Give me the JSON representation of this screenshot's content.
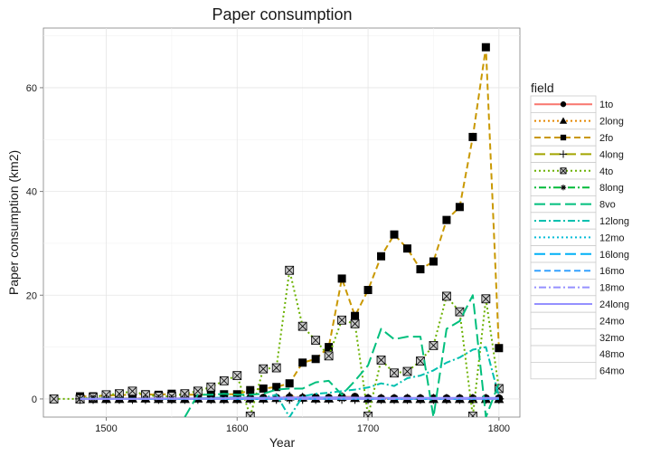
{
  "chart_data": {
    "type": "line",
    "title": "Paper consumption",
    "xlabel": "Year",
    "ylabel": "Paper consumption (km2)",
    "xlim": [
      1452,
      1816
    ],
    "ylim": [
      -3.5,
      71.5
    ],
    "x_ticks": [
      1500,
      1600,
      1700,
      1800
    ],
    "y_ticks": [
      0,
      20,
      40,
      60
    ],
    "grid": true,
    "legend": {
      "title": "field",
      "position": "right"
    },
    "series": [
      {
        "name": "1to",
        "color": "#F8766D",
        "line": "solid",
        "marker": "circle",
        "x": [
          1480,
          1490,
          1500,
          1510,
          1520,
          1530,
          1540,
          1550,
          1560,
          1570,
          1580,
          1590,
          1600,
          1610,
          1620,
          1630,
          1640,
          1650,
          1660,
          1670,
          1680,
          1690,
          1700,
          1710,
          1720,
          1730,
          1740,
          1750,
          1760,
          1770,
          1780,
          1790,
          1800
        ],
        "y": [
          0.1,
          0.1,
          0.1,
          0.1,
          0.1,
          0.1,
          0.1,
          0.1,
          0.1,
          0.1,
          0.1,
          0.1,
          0.1,
          0.2,
          0.2,
          0.2,
          0.3,
          0.2,
          0.3,
          0.2,
          0.4,
          0.4,
          0.1,
          0.1,
          0.1,
          0.1,
          0.1,
          0.1,
          0.1,
          0.1,
          0.1,
          0.1,
          0.1
        ]
      },
      {
        "name": "2long",
        "color": "#E58700",
        "line": "dotted",
        "marker": "triangle",
        "x": [
          1480,
          1490,
          1500,
          1510,
          1520,
          1530,
          1540,
          1550,
          1560,
          1570,
          1580,
          1590,
          1600,
          1610,
          1620,
          1630,
          1640,
          1650,
          1660,
          1670,
          1680,
          1690,
          1700,
          1710,
          1720,
          1730,
          1740,
          1750,
          1760,
          1770,
          1780,
          1790,
          1800
        ],
        "y": [
          0,
          0,
          0,
          0,
          0.1,
          0.1,
          0,
          0,
          0,
          0.1,
          0,
          0,
          0,
          0.1,
          0.1,
          0.2,
          0.5,
          0.3,
          0.1,
          0.1,
          0.4,
          0.2,
          0.1,
          0,
          0,
          0,
          0,
          0,
          0,
          0,
          0,
          0,
          0
        ]
      },
      {
        "name": "2fo",
        "color": "#C99800",
        "line": "dashed",
        "marker": "square",
        "x": [
          1480,
          1490,
          1500,
          1510,
          1520,
          1530,
          1540,
          1550,
          1560,
          1570,
          1580,
          1590,
          1600,
          1610,
          1620,
          1630,
          1640,
          1650,
          1660,
          1670,
          1680,
          1690,
          1700,
          1710,
          1720,
          1730,
          1740,
          1750,
          1760,
          1770,
          1780,
          1790,
          1800
        ],
        "y": [
          0.5,
          0.5,
          0.7,
          0.7,
          0.9,
          0.9,
          0.8,
          1.0,
          0.8,
          0.8,
          0.8,
          0.9,
          0.9,
          1.7,
          2.0,
          2.3,
          3.0,
          7.0,
          7.7,
          10.0,
          23.2,
          16.0,
          21.0,
          27.5,
          31.7,
          29.0,
          25.0,
          26.5,
          34.5,
          37.0,
          50.5,
          67.8,
          9.8
        ]
      },
      {
        "name": "4long",
        "color": "#A3A500",
        "line": "longdash",
        "marker": "plus",
        "x": [
          1480,
          1490,
          1500,
          1510,
          1520,
          1530,
          1540,
          1550,
          1560,
          1570,
          1580,
          1590,
          1600,
          1610,
          1620,
          1630,
          1640,
          1650,
          1660,
          1670,
          1680,
          1690,
          1700,
          1710,
          1720,
          1730,
          1740,
          1750,
          1760,
          1770,
          1780,
          1790,
          1800
        ],
        "y": [
          0,
          0,
          0,
          0,
          0,
          0,
          0,
          0,
          0,
          0,
          0,
          0,
          0,
          0,
          0,
          0,
          0,
          0,
          0,
          0,
          0,
          0,
          0,
          0,
          0,
          0,
          0,
          0,
          0,
          0,
          0,
          0,
          0
        ]
      },
      {
        "name": "4to",
        "color": "#6BB100",
        "line": "dotted",
        "marker": "boxx",
        "x": [
          1460,
          1480,
          1490,
          1500,
          1510,
          1520,
          1530,
          1540,
          1550,
          1560,
          1570,
          1580,
          1590,
          1600,
          1610,
          1620,
          1630,
          1640,
          1650,
          1660,
          1670,
          1680,
          1690,
          1700,
          1710,
          1720,
          1730,
          1740,
          1750,
          1760,
          1770,
          1780,
          1790,
          1800
        ],
        "y": [
          0,
          0,
          0.3,
          0.8,
          1.0,
          1.5,
          0.8,
          0.5,
          0.5,
          1.0,
          1.5,
          2.3,
          3.5,
          4.5,
          -3.3,
          5.8,
          6.0,
          24.8,
          14.0,
          11.3,
          8.3,
          15.2,
          14.5,
          -3.3,
          7.5,
          5.0,
          5.3,
          7.3,
          10.3,
          19.8,
          16.8,
          -3.3,
          19.3,
          2.0
        ]
      },
      {
        "name": "8long",
        "color": "#00BA38",
        "line": "dotdash",
        "marker": "asterisk",
        "x": [
          1480,
          1490,
          1500,
          1510,
          1520,
          1530,
          1540,
          1550,
          1560,
          1570,
          1580,
          1590,
          1600,
          1610,
          1620,
          1630,
          1640,
          1650,
          1660,
          1670,
          1680,
          1690,
          1700,
          1710,
          1720,
          1730,
          1740,
          1750,
          1760,
          1770,
          1780,
          1790,
          1800
        ],
        "y": [
          0,
          0,
          0,
          0,
          0,
          0,
          0,
          0,
          0,
          0,
          0,
          0,
          0,
          0,
          0,
          0,
          0,
          0,
          0,
          0,
          0,
          0,
          0,
          0,
          0,
          0,
          0,
          0,
          0,
          0,
          0,
          0,
          0
        ]
      },
      {
        "name": "8vo",
        "color": "#00BF7D",
        "line": "longdash",
        "marker": "none",
        "x": [
          1560,
          1570,
          1580,
          1590,
          1600,
          1610,
          1620,
          1630,
          1640,
          1650,
          1660,
          1670,
          1680,
          1690,
          1700,
          1710,
          1720,
          1730,
          1740,
          1750,
          1760,
          1770,
          1780,
          1790,
          1800
        ],
        "y": [
          -3.5,
          0.8,
          0.8,
          1.0,
          0.8,
          0.8,
          1.0,
          1.8,
          2.0,
          2.0,
          3.2,
          3.5,
          0.8,
          3.5,
          6.5,
          13.5,
          11.5,
          12.0,
          12.0,
          -3.5,
          13.5,
          15.0,
          20.0,
          -3.5,
          3.0
        ]
      },
      {
        "name": "12long",
        "color": "#00C0AF",
        "line": "dotdash",
        "marker": "none",
        "x": [
          1480,
          1500,
          1520,
          1540,
          1560,
          1580,
          1600,
          1620,
          1630,
          1640,
          1650,
          1660,
          1670,
          1680,
          1690,
          1700,
          1710,
          1720,
          1730,
          1740,
          1750,
          1760,
          1770,
          1780,
          1790,
          1800
        ],
        "y": [
          0,
          0,
          0,
          0,
          0,
          0.2,
          0.3,
          0.2,
          0.8,
          -3.5,
          0.5,
          1.0,
          1.2,
          1.5,
          1.8,
          2.2,
          3.0,
          2.5,
          4.0,
          4.5,
          5.5,
          7.0,
          8.0,
          9.5,
          10.0,
          0.5
        ]
      },
      {
        "name": "12mo",
        "color": "#00BCD8",
        "line": "dotted",
        "marker": "none",
        "x": [
          1480,
          1500,
          1520,
          1540,
          1560,
          1580,
          1600,
          1620,
          1640,
          1660,
          1680,
          1700,
          1720,
          1740,
          1760,
          1780,
          1800
        ],
        "y": [
          0,
          0,
          0,
          0,
          0,
          0,
          0,
          0,
          0,
          0,
          0,
          0,
          0,
          0,
          0,
          0,
          0
        ]
      },
      {
        "name": "16long",
        "color": "#00B0F6",
        "line": "longdash",
        "marker": "none",
        "x": [
          1480,
          1500,
          1520,
          1540,
          1560,
          1580,
          1600,
          1620,
          1640,
          1660,
          1680,
          1700,
          1720,
          1740,
          1760,
          1780,
          1800
        ],
        "y": [
          0,
          0,
          0,
          0,
          0,
          0,
          0,
          0,
          0,
          0,
          0,
          0,
          0,
          0,
          0,
          0,
          0
        ]
      },
      {
        "name": "16mo",
        "color": "#35A2FF",
        "line": "dashed",
        "marker": "none",
        "x": [
          1480,
          1500,
          1520,
          1540,
          1560,
          1580,
          1600,
          1620,
          1640,
          1660,
          1680,
          1700,
          1720,
          1740,
          1760,
          1780,
          1800
        ],
        "y": [
          0,
          0,
          0,
          0,
          0,
          0,
          0,
          0,
          0,
          0,
          0,
          0,
          0,
          0,
          0,
          0,
          0
        ]
      },
      {
        "name": "18mo",
        "color": "#9590FF",
        "line": "dotdash",
        "marker": "none",
        "x": [
          1480,
          1500,
          1520,
          1540,
          1560,
          1580,
          1600,
          1620,
          1640,
          1660,
          1680,
          1700,
          1720,
          1740,
          1760,
          1780,
          1800
        ],
        "y": [
          0,
          0,
          0,
          0,
          0,
          0,
          0,
          0,
          0,
          0,
          0,
          0,
          0,
          0,
          0,
          0,
          0
        ]
      },
      {
        "name": "24long",
        "color": "#9590FF",
        "line": "solid",
        "marker": "none",
        "x": [
          1480,
          1500,
          1520,
          1540,
          1560,
          1580,
          1600,
          1620,
          1640,
          1660,
          1680,
          1700,
          1720,
          1740,
          1760,
          1780,
          1800
        ],
        "y": [
          0,
          0,
          0,
          0.1,
          0.1,
          0.1,
          0.2,
          0.2,
          0.3,
          0.3,
          0.3,
          0.2,
          0.2,
          0.2,
          0.2,
          0.2,
          0.2
        ]
      },
      {
        "name": "24mo",
        "color": "#E76BF3",
        "line": "none",
        "marker": "none",
        "x": [],
        "y": []
      },
      {
        "name": "32mo",
        "color": "#FA62DB",
        "line": "none",
        "marker": "none",
        "x": [],
        "y": []
      },
      {
        "name": "48mo",
        "color": "#FF62BC",
        "line": "none",
        "marker": "none",
        "x": [],
        "y": []
      },
      {
        "name": "64mo",
        "color": "#FF6C90",
        "line": "none",
        "marker": "none",
        "x": [],
        "y": []
      }
    ]
  }
}
